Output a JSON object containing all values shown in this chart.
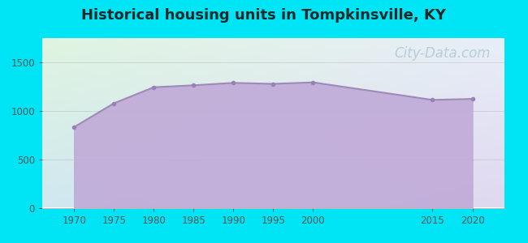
{
  "title": "Historical housing units in Tompkinsville, KY",
  "title_fontsize": 13,
  "title_fontweight": "bold",
  "title_color": "#1a2a2a",
  "years": [
    1970,
    1975,
    1980,
    1985,
    1990,
    1995,
    2000,
    2015,
    2020
  ],
  "values": [
    830,
    1075,
    1240,
    1260,
    1285,
    1275,
    1290,
    1110,
    1120
  ],
  "line_color": "#a08ab8",
  "line_width": 1.5,
  "fill_color": "#c0aad8",
  "fill_alpha": 0.9,
  "marker_color": "#9880b8",
  "marker_size": 4,
  "background_outer": "#00e5f5",
  "bg_top_left": "#e8f5e0",
  "bg_top_right": "#ddeeff",
  "bg_bottom_left": "#d8e8f5",
  "bg_bottom_right": "#e0d8f0",
  "ylim": [
    0,
    1750
  ],
  "yticks": [
    0,
    500,
    1000,
    1500
  ],
  "xticks": [
    1970,
    1975,
    1980,
    1985,
    1990,
    1995,
    2000,
    2015,
    2020
  ],
  "xlim": [
    1966,
    2024
  ],
  "watermark_text": "City-Data.com",
  "watermark_color": "#90b8c0",
  "watermark_alpha": 0.55,
  "watermark_fontsize": 12,
  "grid_color": "#bbbbbb",
  "grid_alpha": 0.5,
  "tick_color": "#555555",
  "tick_fontsize": 8.5
}
